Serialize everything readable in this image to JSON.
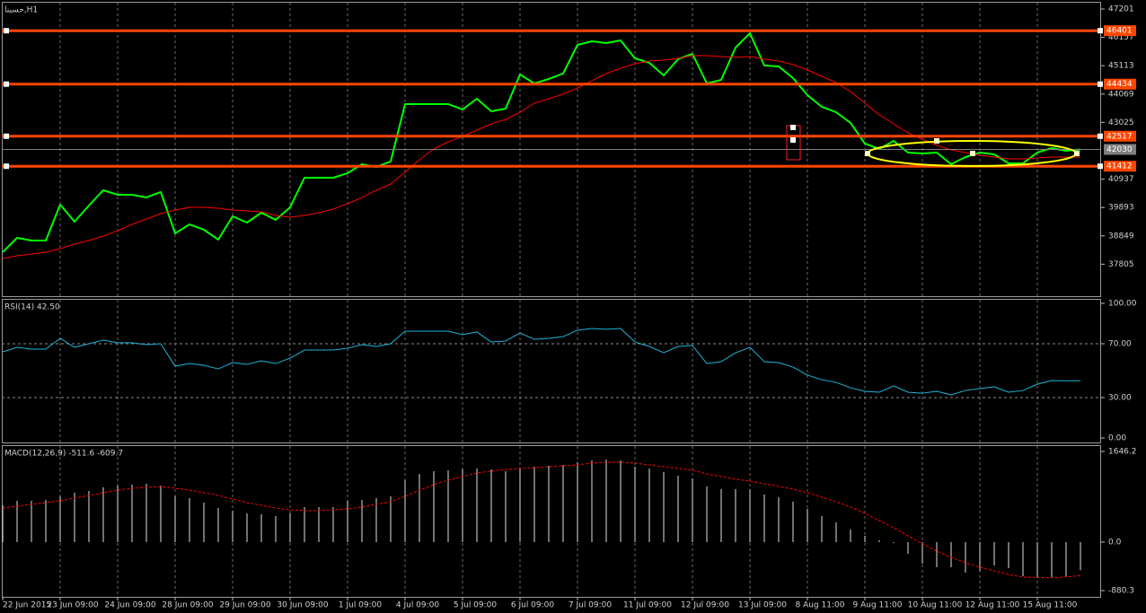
{
  "chart_data": [
    {
      "type": "line",
      "title": "حسينا,H1",
      "categories": [
        "22 Jun 2015",
        null,
        null,
        null,
        "23 Jun 09:00",
        null,
        null,
        null,
        "24 Jun 09:00",
        null,
        null,
        null,
        "28 Jun 09:00",
        null,
        null,
        null,
        "29 Jun 09:00",
        null,
        null,
        null,
        "30 Jun 09:00",
        null,
        null,
        null,
        "1 Jul 09:00",
        null,
        null,
        null,
        "4 Jul 09:00",
        null,
        null,
        null,
        "5 Jul 09:00",
        null,
        null,
        null,
        "6 Jul 09:00",
        null,
        null,
        null,
        "7 Jul 09:00",
        null,
        null,
        null,
        "11 Jul 09:00",
        null,
        null,
        null,
        "12 Jul 09:00",
        null,
        null,
        null,
        "13 Jul 09:00",
        null,
        null,
        null,
        "8 Aug 11:00",
        null,
        null,
        null,
        "9 Aug 11:00",
        null,
        null,
        null,
        "10 Aug 11:00",
        null,
        null,
        null,
        "12 Aug 11:00",
        null,
        null,
        null,
        "15 Aug 11:00",
        null,
        null,
        null
      ],
      "series": [
        {
          "color": "#00ff00",
          "width": 2,
          "values": [
            38247,
            38776,
            38677,
            38677,
            39998,
            39371,
            39965,
            40527,
            40362,
            40362,
            40263,
            40461,
            38941,
            39271,
            39073,
            38710,
            39569,
            39337,
            39701,
            39437,
            39899,
            40989,
            40989,
            40989,
            41155,
            41485,
            41386,
            41584,
            43699,
            43699,
            43699,
            43699,
            43501,
            43897,
            43434,
            43534,
            44789,
            44459,
            44624,
            44822,
            45879,
            46012,
            45945,
            46045,
            45384,
            45219,
            44756,
            45351,
            45549,
            44459,
            44591,
            45780,
            46309,
            45119,
            45086,
            44657,
            44029,
            43600,
            43401,
            43005,
            42245,
            42047,
            42344,
            41915,
            41882,
            41915,
            41485,
            41749,
            41915,
            41849,
            41518,
            41518,
            41915,
            42080,
            41981,
            42030
          ]
        },
        {
          "color": "#ff0000",
          "width": 1,
          "values": [
            38016,
            38115,
            38181,
            38247,
            38379,
            38545,
            38677,
            38842,
            39040,
            39271,
            39470,
            39668,
            39800,
            39899,
            39899,
            39866,
            39800,
            39767,
            39734,
            39602,
            39536,
            39602,
            39701,
            39833,
            40031,
            40263,
            40527,
            40758,
            41188,
            41650,
            42047,
            42311,
            42509,
            42741,
            42972,
            43137,
            43401,
            43732,
            43897,
            44062,
            44293,
            44558,
            44822,
            45020,
            45186,
            45285,
            45318,
            45384,
            45483,
            45483,
            45450,
            45417,
            45450,
            45351,
            45285,
            45153,
            44954,
            44723,
            44492,
            44161,
            43732,
            43302,
            42972,
            42641,
            42410,
            42179,
            42014,
            41915,
            41815,
            41749,
            41683,
            41683,
            41716,
            41749,
            41749,
            41749
          ]
        }
      ],
      "ylim": [
        36628,
        47465
      ],
      "yticks": [
        47201,
        46157,
        45113,
        44069,
        43025,
        40937,
        39893,
        38849,
        37805
      ],
      "hlines": [
        {
          "value": 46401,
          "color": "#ff4500"
        },
        {
          "value": 44434,
          "color": "#ff4500"
        },
        {
          "value": 42517,
          "color": "#ff4500"
        },
        {
          "value": 41412,
          "color": "#ff4500"
        },
        {
          "value": 42030,
          "color": "#808080"
        }
      ]
    },
    {
      "type": "line",
      "title": "RSI(14) 42.50",
      "series": [
        {
          "color": "#1fb4d8",
          "width": 1,
          "values": [
            64,
            67.3,
            66,
            66,
            74,
            67.3,
            70,
            72.7,
            70.7,
            70.7,
            69.3,
            70,
            53.3,
            55.3,
            54,
            51.3,
            56,
            54.7,
            57.3,
            55.3,
            59.3,
            65.3,
            65.3,
            65.3,
            66.7,
            69.3,
            68,
            70,
            79.3,
            79.3,
            79.3,
            79.3,
            76.7,
            78.7,
            71.3,
            72,
            78,
            73.3,
            74,
            75.3,
            80,
            81.3,
            80.7,
            81.3,
            71.3,
            68,
            63.3,
            68,
            68.7,
            55.3,
            56.7,
            63.3,
            67.3,
            56.7,
            56,
            52.7,
            46.7,
            43.3,
            41.3,
            37.3,
            34.7,
            34,
            38.7,
            34,
            33.3,
            34.7,
            32,
            35.3,
            36.7,
            38,
            34,
            35.3,
            40,
            42.7,
            42.5,
            42.5
          ]
        }
      ],
      "ylim": [
        -3.3,
        103.3
      ],
      "yticks": [
        {
          "value": 100,
          "label": "100.00"
        },
        {
          "value": 70,
          "label": "70.00"
        },
        {
          "value": 30,
          "label": "30.00"
        },
        {
          "value": 0,
          "label": "0.00"
        }
      ],
      "level_lines": [
        70,
        30
      ]
    },
    {
      "type": "bar",
      "title": "MACD(12,26,9) -511.6 -609.7",
      "series": [
        {
          "color": "#e0e0e0",
          "values": [
            668,
            750,
            750,
            766,
            831,
            897,
            929,
            994,
            1027,
            1043,
            1060,
            1027,
            831,
            799,
            717,
            619,
            571,
            522,
            505,
            473,
            522,
            636,
            636,
            636,
            750,
            766,
            799,
            831,
            1125,
            1239,
            1288,
            1304,
            1320,
            1337,
            1320,
            1288,
            1353,
            1369,
            1386,
            1402,
            1451,
            1483,
            1500,
            1483,
            1369,
            1337,
            1271,
            1206,
            1157,
            1011,
            962,
            962,
            962,
            864,
            815,
            734,
            603,
            473,
            359,
            228,
            114,
            33,
            -16,
            -212,
            -391,
            -456,
            -456,
            -554,
            -522,
            -424,
            -473,
            -619,
            -652,
            -636,
            -619,
            -511.6
          ]
        },
        {
          "type": "line",
          "dashed": true,
          "color": "#ff0000",
          "width": 1,
          "values": [
            619,
            652,
            685,
            717,
            750,
            799,
            848,
            897,
            945,
            978,
            994,
            1011,
            978,
            945,
            897,
            848,
            782,
            717,
            668,
            619,
            587,
            571,
            571,
            587,
            603,
            636,
            685,
            734,
            831,
            945,
            1043,
            1125,
            1190,
            1255,
            1288,
            1320,
            1337,
            1353,
            1369,
            1386,
            1402,
            1434,
            1451,
            1451,
            1434,
            1402,
            1369,
            1337,
            1304,
            1239,
            1190,
            1141,
            1108,
            1060,
            1011,
            962,
            897,
            815,
            734,
            636,
            522,
            391,
            261,
            114,
            -33,
            -163,
            -277,
            -375,
            -456,
            -522,
            -587,
            -636,
            -640,
            -650,
            -630,
            -609.7
          ]
        }
      ],
      "ylim": [
        -994,
        1760
      ],
      "yticks": [
        1646.2,
        {
          "value": 0,
          "label": "0.0"
        },
        -880.3
      ]
    }
  ]
}
